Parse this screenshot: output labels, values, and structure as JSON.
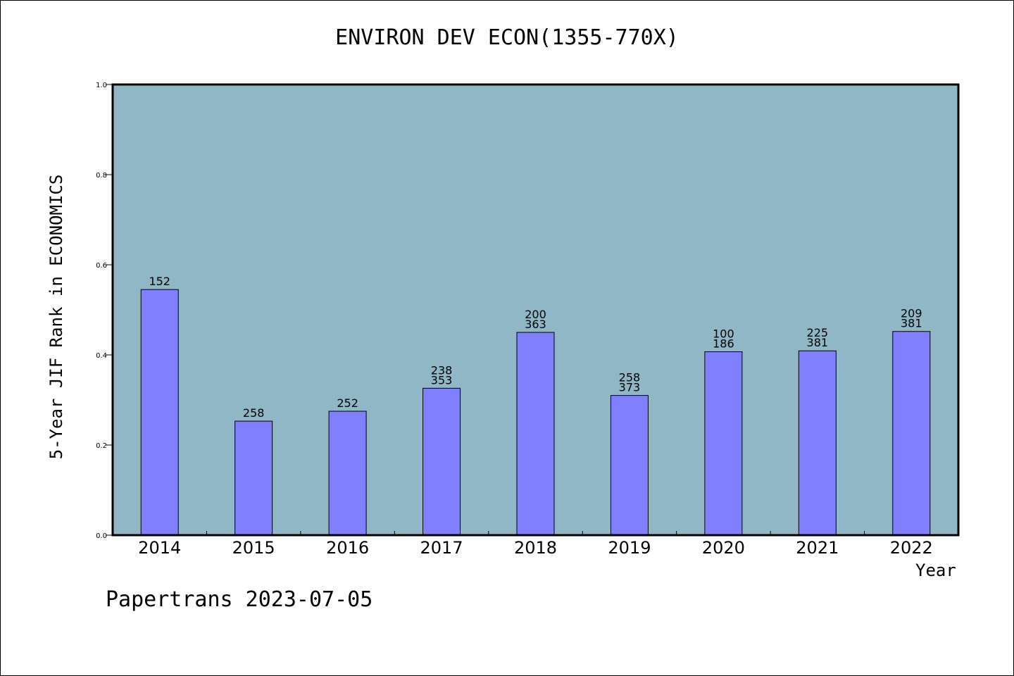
{
  "chart_data": {
    "type": "bar",
    "title": "ENVIRON DEV ECON(1355-770X)",
    "xlabel": "Year",
    "ylabel": "5-Year JIF Rank in ECONOMICS",
    "ylim": [
      0,
      1.0
    ],
    "yticks": [
      "0.0",
      "0.2",
      "0.4",
      "0.6",
      "0.8",
      "1.0"
    ],
    "grid": false,
    "categories": [
      "2014",
      "2015",
      "2016",
      "2017",
      "2018",
      "2019",
      "2020",
      "2021",
      "2022"
    ],
    "values": [
      0.545,
      0.253,
      0.275,
      0.326,
      0.45,
      0.31,
      0.407,
      0.409,
      0.452
    ],
    "bar_labels": [
      [
        "152"
      ],
      [
        "258"
      ],
      [
        "252"
      ],
      [
        "238",
        "353"
      ],
      [
        "200",
        "363"
      ],
      [
        "258",
        "373"
      ],
      [
        "100",
        "186"
      ],
      [
        "225",
        "381"
      ],
      [
        "209",
        "381"
      ]
    ],
    "colors": {
      "plot_background": "#8fb7c5",
      "bar": "#8080ff"
    }
  },
  "footer": "Papertrans 2023-07-05"
}
